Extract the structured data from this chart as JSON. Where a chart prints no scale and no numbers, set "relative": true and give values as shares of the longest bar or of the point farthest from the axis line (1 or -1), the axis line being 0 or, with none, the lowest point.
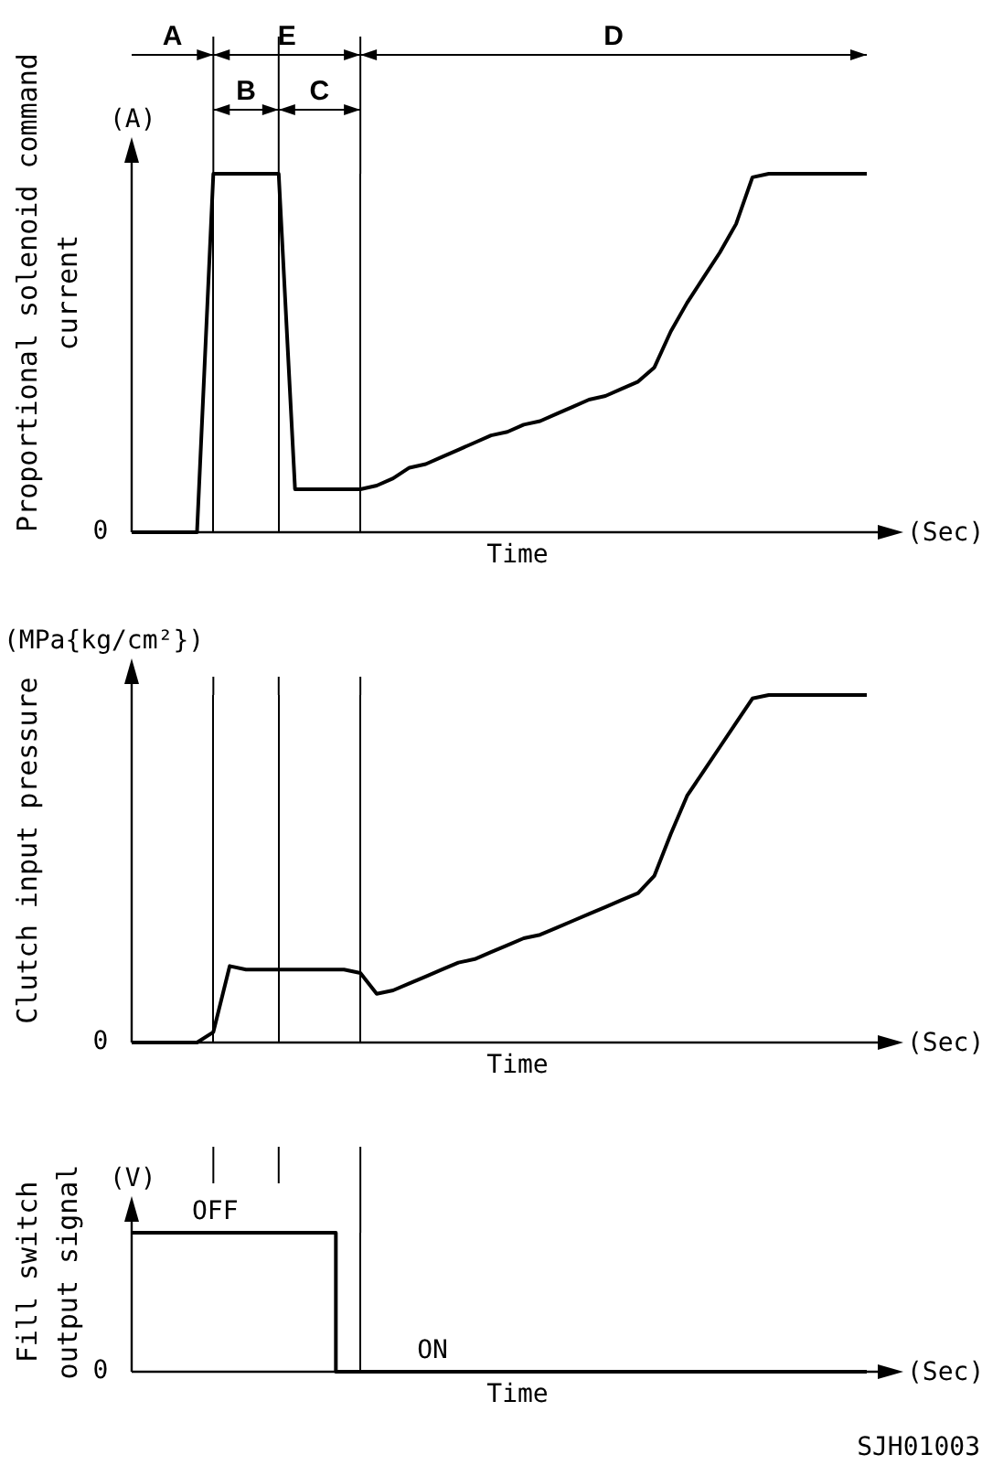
{
  "chart_data": [
    {
      "type": "line",
      "relative": true,
      "ylabel": "Proportional solenoid command current",
      "xlabel": "Time",
      "legend": false,
      "marker": "none",
      "grid": "x",
      "annotations": [
        "(A)",
        "0",
        "(Sec)",
        "A",
        "E",
        "D",
        "B",
        "C"
      ],
      "categories": [
        null,
        null,
        null,
        null,
        null,
        null,
        null,
        null,
        null,
        null,
        null,
        null,
        null,
        null,
        null,
        null,
        null,
        null,
        null,
        null,
        null,
        null,
        null,
        null,
        null,
        null,
        null,
        null,
        null,
        null,
        null,
        null,
        null,
        null,
        null,
        null,
        null,
        null,
        null,
        null,
        null,
        null,
        null,
        null,
        null,
        null
      ],
      "series": [
        {
          "color": "#000000",
          "values": [
            0,
            0,
            0,
            0,
            0,
            1,
            1,
            1,
            1,
            1,
            0.12,
            0.12,
            0.12,
            0.12,
            0.12,
            0.13,
            0.15,
            0.18,
            0.19,
            0.21,
            0.23,
            0.25,
            0.27,
            0.28,
            0.3,
            0.31,
            0.33,
            0.35,
            0.37,
            0.38,
            0.4,
            0.42,
            0.46,
            0.56,
            0.64,
            0.71,
            0.78,
            0.86,
            0.99,
            1,
            1,
            1,
            1,
            1,
            1,
            1
          ]
        }
      ]
    },
    {
      "type": "line",
      "relative": true,
      "ylabel": "Clutch input pressure",
      "xlabel": "Time",
      "legend": false,
      "marker": "none",
      "grid": "x",
      "annotations": [
        "(MPa{kg/cm²})",
        "0",
        "(Sec)"
      ],
      "categories": [
        null,
        null,
        null,
        null,
        null,
        null,
        null,
        null,
        null,
        null,
        null,
        null,
        null,
        null,
        null,
        null,
        null,
        null,
        null,
        null,
        null,
        null,
        null,
        null,
        null,
        null,
        null,
        null,
        null,
        null,
        null,
        null,
        null,
        null,
        null,
        null,
        null,
        null,
        null,
        null,
        null,
        null,
        null,
        null,
        null,
        null
      ],
      "series": [
        {
          "color": "#000000",
          "values": [
            0,
            0,
            0,
            0,
            0,
            0.03,
            0.22,
            0.21,
            0.21,
            0.21,
            0.21,
            0.21,
            0.21,
            0.21,
            0.2,
            0.14,
            0.15,
            0.17,
            0.19,
            0.21,
            0.23,
            0.24,
            0.26,
            0.28,
            0.3,
            0.31,
            0.33,
            0.35,
            0.37,
            0.39,
            0.41,
            0.43,
            0.48,
            0.6,
            0.71,
            0.78,
            0.85,
            0.92,
            0.99,
            1,
            1,
            1,
            1,
            1,
            1,
            1
          ]
        }
      ]
    },
    {
      "type": "step",
      "relative": true,
      "ylabel": "Fill switch output signal",
      "xlabel": "Time",
      "legend": false,
      "marker": "none",
      "grid": "x",
      "annotations": [
        "(V)",
        "0",
        "(Sec)",
        "SJH01003",
        {
          "text": "OFF",
          "y": 1
        },
        {
          "text": "ON",
          "y": 0
        }
      ],
      "categories": [
        null,
        null,
        null,
        null,
        null,
        null,
        null,
        null,
        null,
        null,
        null,
        null,
        null,
        null,
        null,
        null,
        null,
        null,
        null,
        null,
        null,
        null,
        null,
        null,
        null,
        null,
        null,
        null,
        null,
        null,
        null,
        null,
        null,
        null,
        null,
        null,
        null,
        null,
        null,
        null,
        null,
        null,
        null,
        null,
        null,
        null
      ],
      "series": [
        {
          "color": "#000000",
          "values": [
            1,
            1,
            1,
            1,
            1,
            1,
            1,
            1,
            1,
            1,
            1,
            1,
            1,
            0,
            0,
            0,
            0,
            0,
            0,
            0,
            0,
            0,
            0,
            0,
            0,
            0,
            0,
            0,
            0,
            0,
            0,
            0,
            0,
            0,
            0,
            0,
            0,
            0,
            0,
            0,
            0,
            0,
            0,
            0,
            0,
            0
          ]
        }
      ]
    }
  ]
}
